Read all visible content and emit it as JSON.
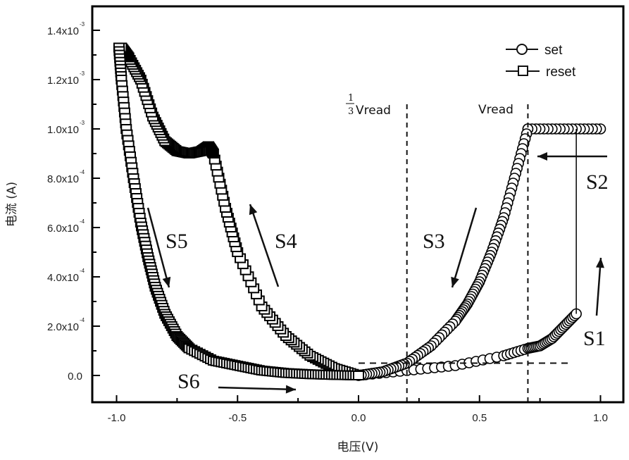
{
  "chart_data": {
    "type": "scatter",
    "title": "",
    "xlabel": "电压(V)",
    "ylabel": "电流 (A)",
    "xlim": [
      -1.1,
      1.1
    ],
    "ylim": [
      -0.0001,
      0.00145
    ],
    "xticks": [
      {
        "value": -1.0,
        "label": "-1.0"
      },
      {
        "value": -0.5,
        "label": "-0.5"
      },
      {
        "value": 0.0,
        "label": "0.0"
      },
      {
        "value": 0.5,
        "label": "0.5"
      },
      {
        "value": 1.0,
        "label": "1.0"
      }
    ],
    "yticks": [
      {
        "value": 0.0,
        "mantissa": "0.0",
        "exp": ""
      },
      {
        "value": 0.0002,
        "mantissa": "2.0x10",
        "exp": "-4"
      },
      {
        "value": 0.0004,
        "mantissa": "4.0x10",
        "exp": "-4"
      },
      {
        "value": 0.0006,
        "mantissa": "6.0x10",
        "exp": "-4"
      },
      {
        "value": 0.0008,
        "mantissa": "8.0x10",
        "exp": "-4"
      },
      {
        "value": 0.001,
        "mantissa": "1.0x10",
        "exp": "-3"
      },
      {
        "value": 0.0012,
        "mantissa": "1.2x10",
        "exp": "-3"
      },
      {
        "value": 0.0014,
        "mantissa": "1.4x10",
        "exp": "-3"
      }
    ],
    "grid": false,
    "legend": {
      "position": "top-right",
      "entries": [
        {
          "name": "set",
          "marker": "circle"
        },
        {
          "name": "reset",
          "marker": "square"
        }
      ]
    },
    "series": [
      {
        "name": "set",
        "marker": "circle",
        "segments": [
          {
            "label": "S1",
            "x": [
              0.0,
              0.2,
              0.4,
              0.6,
              0.7,
              0.75,
              0.8,
              0.85,
              0.9
            ],
            "y": [
              0.0,
              2e-05,
              4e-05,
              8e-05,
              0.00011,
              0.00012,
              0.00015,
              0.0002,
              0.00025
            ]
          },
          {
            "label": "S2",
            "x": [
              1.0,
              0.9,
              0.8,
              0.7
            ],
            "y": [
              0.001,
              0.001,
              0.001,
              0.001
            ]
          },
          {
            "label": "S3",
            "x": [
              0.7,
              0.65,
              0.6,
              0.55,
              0.5,
              0.45,
              0.4,
              0.3,
              0.2,
              0.1,
              0.0
            ],
            "y": [
              0.001,
              0.00082,
              0.00064,
              0.0005,
              0.00038,
              0.00029,
              0.00022,
              0.00012,
              5e-05,
              1.5e-05,
              0.0
            ]
          }
        ]
      },
      {
        "name": "reset",
        "marker": "square",
        "segments": [
          {
            "label": "S4",
            "x": [
              0.0,
              -0.1,
              -0.2,
              -0.3,
              -0.4,
              -0.5,
              -0.55,
              -0.6,
              -0.62,
              -0.65,
              -0.7,
              -0.75,
              -0.8,
              -0.85,
              -0.9,
              -0.95,
              -0.98
            ],
            "y": [
              0.0,
              3e-05,
              8e-05,
              0.00016,
              0.00028,
              0.0005,
              0.00068,
              0.0009,
              0.00093,
              0.00091,
              0.0009,
              0.00091,
              0.00095,
              0.00105,
              0.0012,
              0.00129,
              0.00133
            ]
          },
          {
            "label": "S5",
            "x": [
              -0.99,
              -0.98,
              -0.96,
              -0.93,
              -0.9,
              -0.87,
              -0.84,
              -0.8,
              -0.75,
              -0.7,
              -0.6,
              -0.5,
              -0.4,
              -0.3,
              -0.2,
              -0.1,
              0.0
            ],
            "y": [
              0.00133,
              0.0012,
              0.001,
              0.0008,
              0.00062,
              0.00048,
              0.00036,
              0.00025,
              0.00016,
              0.00011,
              6e-05,
              4e-05,
              2e-05,
              1e-05,
              5e-06,
              2e-06,
              0.0
            ]
          }
        ]
      }
    ],
    "annotations": {
      "steps": [
        "S1",
        "S2",
        "S3",
        "S4",
        "S5",
        "S6"
      ],
      "vlines": [
        {
          "x": 0.2,
          "label_fraction_num": "1",
          "label_fraction_den": "3",
          "label": "Vread"
        },
        {
          "x": 0.7,
          "label": "Vread"
        }
      ],
      "hline_y": 5e-05
    }
  }
}
